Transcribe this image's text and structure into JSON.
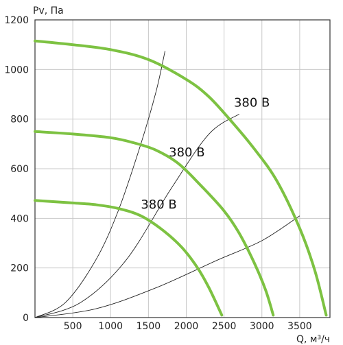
{
  "chart_data": {
    "type": "line",
    "title": "",
    "xlabel": "Q, м³/ч",
    "ylabel": "Pv, Па",
    "xlim": [
      0,
      3900
    ],
    "ylim": [
      0,
      1200
    ],
    "x_ticks": [
      500,
      1000,
      1500,
      2000,
      2500,
      3000,
      3500
    ],
    "y_ticks": [
      0,
      200,
      400,
      600,
      800,
      1000,
      1200
    ],
    "grid": true,
    "fan_curves": [
      {
        "label": "380 В",
        "color": "#7dc242",
        "points": [
          [
            0,
            1115
          ],
          [
            500,
            1100
          ],
          [
            1000,
            1080
          ],
          [
            1500,
            1040
          ],
          [
            2000,
            960
          ],
          [
            2300,
            890
          ],
          [
            2600,
            790
          ],
          [
            2900,
            680
          ],
          [
            3200,
            550
          ],
          [
            3500,
            360
          ],
          [
            3700,
            190
          ],
          [
            3850,
            10
          ]
        ]
      },
      {
        "label": "380 В",
        "color": "#7dc242",
        "points": [
          [
            0,
            750
          ],
          [
            500,
            740
          ],
          [
            1000,
            725
          ],
          [
            1300,
            705
          ],
          [
            1600,
            675
          ],
          [
            1900,
            620
          ],
          [
            2200,
            530
          ],
          [
            2500,
            430
          ],
          [
            2700,
            340
          ],
          [
            2900,
            220
          ],
          [
            3050,
            110
          ],
          [
            3150,
            10
          ]
        ]
      },
      {
        "label": "380 В",
        "color": "#7dc242",
        "points": [
          [
            0,
            472
          ],
          [
            500,
            462
          ],
          [
            800,
            455
          ],
          [
            1100,
            440
          ],
          [
            1400,
            410
          ],
          [
            1700,
            350
          ],
          [
            1950,
            280
          ],
          [
            2150,
            200
          ],
          [
            2300,
            120
          ],
          [
            2470,
            10
          ]
        ]
      }
    ],
    "system_curves": [
      {
        "color": "#222222",
        "points": [
          [
            0,
            0
          ],
          [
            400,
            60
          ],
          [
            800,
            230
          ],
          [
            1100,
            430
          ],
          [
            1400,
            700
          ],
          [
            1600,
            910
          ],
          [
            1720,
            1075
          ]
        ]
      },
      {
        "color": "#222222",
        "points": [
          [
            0,
            0
          ],
          [
            600,
            60
          ],
          [
            1200,
            230
          ],
          [
            1800,
            520
          ],
          [
            2300,
            740
          ],
          [
            2700,
            820
          ]
        ]
      },
      {
        "color": "#222222",
        "points": [
          [
            0,
            0
          ],
          [
            800,
            35
          ],
          [
            1600,
            120
          ],
          [
            2400,
            230
          ],
          [
            3000,
            310
          ],
          [
            3500,
            410
          ]
        ]
      }
    ],
    "label_positions_data": [
      {
        "x": 2630,
        "y": 850
      },
      {
        "x": 1770,
        "y": 650
      },
      {
        "x": 1400,
        "y": 440
      }
    ]
  }
}
